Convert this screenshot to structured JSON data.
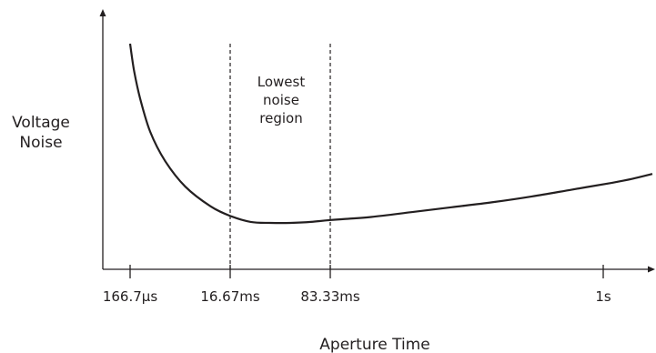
{
  "chart_data": {
    "type": "line",
    "title": "",
    "xlabel": "Aperture Time",
    "ylabel": [
      "Voltage",
      "Noise"
    ],
    "x_ticks": [
      "166.7µs",
      "16.67ms",
      "83.33ms",
      "1s"
    ],
    "y_ticks": [],
    "grid": false,
    "legend": "none",
    "annotation": [
      "Lowest",
      "noise",
      "region"
    ],
    "region_bounds": [
      "16.67ms",
      "83.33ms"
    ],
    "series": [
      {
        "x": [
          0.0,
          0.04,
          0.1,
          0.2,
          0.35,
          0.55,
          0.8,
          1.0,
          1.2,
          1.4,
          1.6,
          1.8,
          2.0,
          2.4,
          2.8,
          3.2,
          3.6,
          4.0,
          4.4,
          4.8,
          5.0,
          5.2
        ],
        "y": [
          1.0,
          0.86,
          0.72,
          0.55,
          0.4,
          0.27,
          0.17,
          0.12,
          0.09,
          0.085,
          0.085,
          0.09,
          0.1,
          0.115,
          0.14,
          0.165,
          0.19,
          0.22,
          0.255,
          0.29,
          0.31,
          0.335
        ]
      }
    ],
    "colors": {
      "ink": "#231f20",
      "background": "#ffffff"
    }
  }
}
